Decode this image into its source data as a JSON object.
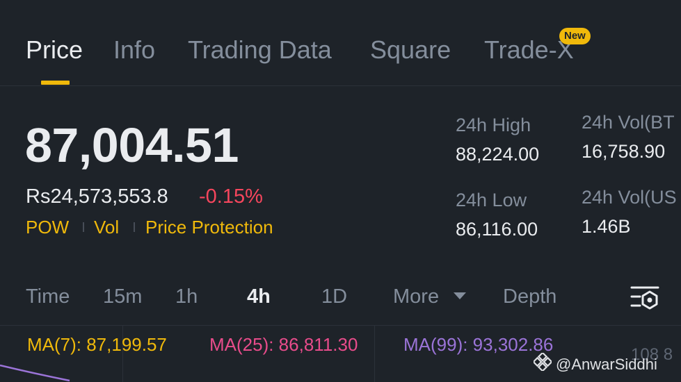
{
  "tabs": [
    {
      "label": "Price",
      "active": true
    },
    {
      "label": "Info"
    },
    {
      "label": "Trading Data"
    },
    {
      "label": "Square"
    },
    {
      "label": "Trade-X",
      "badge": "New"
    }
  ],
  "price": {
    "last": "87,004.51",
    "fiat": "Rs24,573,553.8",
    "change": "-0.15%",
    "tags": [
      "POW",
      "Vol",
      "Price Protection"
    ]
  },
  "stats": {
    "high_label": "24h High",
    "high_value": "88,224.00",
    "vol_btc_label": "24h Vol(BT",
    "vol_btc_value": "16,758.90",
    "low_label": "24h Low",
    "low_value": "86,116.00",
    "vol_usdt_label": "24h Vol(US",
    "vol_usdt_value": "1.46B"
  },
  "intervals": {
    "items": [
      "Time",
      "15m",
      "1h",
      "4h",
      "1D",
      "More",
      "Depth"
    ],
    "active": "4h"
  },
  "ma": {
    "ma7": "MA(7): 87,199.57",
    "ma25": "MA(25): 86,811.30",
    "ma99": "MA(99): 93,302.86"
  },
  "axis_partial": "108 8",
  "watermark": "@AnwarSiddhi",
  "colors": {
    "background": "#1e2329",
    "accent": "#f0b90b",
    "negative": "#f6465d",
    "ma7": "#f0b90b",
    "ma25": "#e84c8b",
    "ma99": "#9b74d8",
    "muted": "#848e9c"
  },
  "icons": [
    "chart-settings-icon",
    "binance-logo-icon",
    "dropdown-caret-icon"
  ]
}
